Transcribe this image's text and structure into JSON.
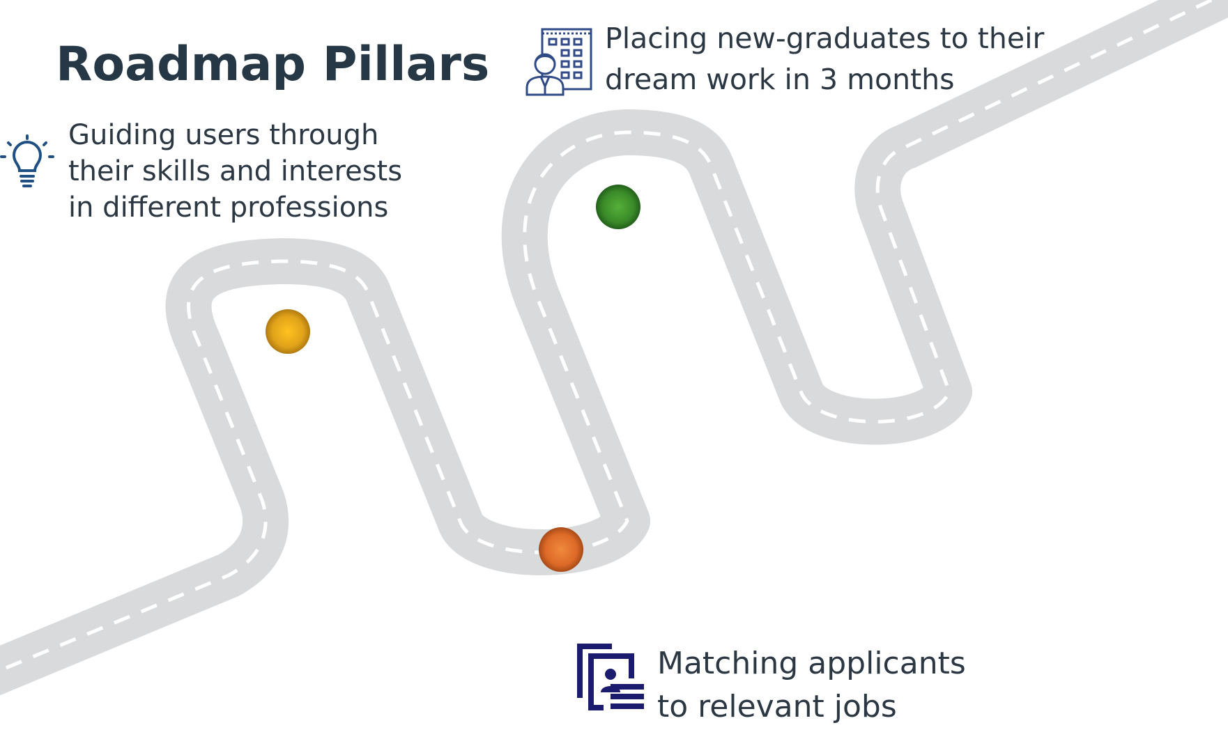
{
  "title": "Roadmap Pillars",
  "colors": {
    "road": "#d9dadb",
    "lane_marking": "#ffffff",
    "text": "#2b3743",
    "title": "#263746",
    "bulb_icon": "#1f4f83",
    "office_icon": "#2f4a86",
    "resume_icon": "#1c1c6e"
  },
  "milestones": [
    {
      "name": "milestone-1",
      "color": "#e0a21a"
    },
    {
      "name": "milestone-2",
      "color": "#3a8a28"
    },
    {
      "name": "milestone-3",
      "color": "#dd6a28"
    }
  ],
  "pillars": [
    {
      "icon": "lightbulb-icon",
      "lines": [
        "Guiding users through",
        "their skills and interests",
        "in different professions"
      ]
    },
    {
      "icon": "office-building-person-icon",
      "lines": [
        "Placing new-graduates to their",
        "dream work in 3 months"
      ]
    },
    {
      "icon": "resume-documents-icon",
      "lines": [
        "Matching applicants",
        "to relevant jobs"
      ]
    }
  ]
}
